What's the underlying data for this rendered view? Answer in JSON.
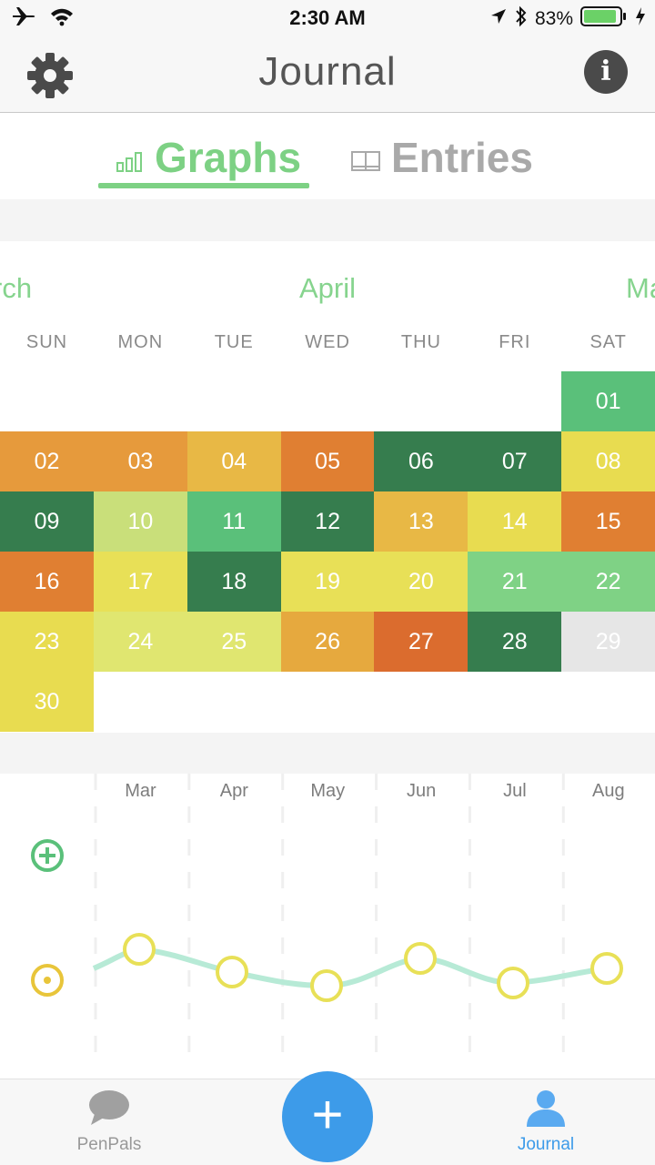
{
  "status_bar": {
    "time": "2:30 AM",
    "battery": "83%"
  },
  "nav": {
    "title": "Journal",
    "left_icon": "gear-icon",
    "right_icon": "info-icon",
    "info_glyph": "i"
  },
  "tabs": [
    {
      "label": "Graphs",
      "icon": "bar-chart-icon",
      "selected": true
    },
    {
      "label": "Entries",
      "icon": "book-icon",
      "selected": false
    }
  ],
  "calendar": {
    "prev_month": "rch",
    "month": "April",
    "next_month": "Ma",
    "weekdays": [
      "SUN",
      "MON",
      "TUE",
      "WED",
      "THU",
      "FRI",
      "SAT"
    ],
    "days": [
      {
        "label": "01",
        "color": "#5ac07a"
      },
      {
        "label": "02",
        "color": "#e69a3c"
      },
      {
        "label": "03",
        "color": "#e69a3c"
      },
      {
        "label": "04",
        "color": "#e8b845"
      },
      {
        "label": "05",
        "color": "#e07f32"
      },
      {
        "label": "06",
        "color": "#367d4e"
      },
      {
        "label": "07",
        "color": "#367d4e"
      },
      {
        "label": "08",
        "color": "#e8dc50"
      },
      {
        "label": "09",
        "color": "#367d4e"
      },
      {
        "label": "10",
        "color": "#c9df7a"
      },
      {
        "label": "11",
        "color": "#5ac07a"
      },
      {
        "label": "12",
        "color": "#367d4e"
      },
      {
        "label": "13",
        "color": "#e8b845"
      },
      {
        "label": "14",
        "color": "#e8dc50"
      },
      {
        "label": "15",
        "color": "#e07f32"
      },
      {
        "label": "16",
        "color": "#e07f32"
      },
      {
        "label": "17",
        "color": "#e8e057"
      },
      {
        "label": "18",
        "color": "#367d4e"
      },
      {
        "label": "19",
        "color": "#e8e057"
      },
      {
        "label": "20",
        "color": "#e8e057"
      },
      {
        "label": "21",
        "color": "#7fd285"
      },
      {
        "label": "22",
        "color": "#7fd285"
      },
      {
        "label": "23",
        "color": "#e8dc50"
      },
      {
        "label": "24",
        "color": "#e0e670"
      },
      {
        "label": "25",
        "color": "#e0e670"
      },
      {
        "label": "26",
        "color": "#e6a93e"
      },
      {
        "label": "27",
        "color": "#db6c2e"
      },
      {
        "label": "28",
        "color": "#367d4e"
      },
      {
        "label": "29",
        "color": "#e6e6e6"
      },
      {
        "label": "30",
        "color": "#e8dc50"
      }
    ]
  },
  "graph": {
    "months": [
      "Mar",
      "Apr",
      "May",
      "Jun",
      "Jul",
      "Aug"
    ],
    "markers": [
      {
        "icon": "plus-circle-icon",
        "color": "#5ac07a"
      },
      {
        "icon": "dot-circle-icon",
        "color": "#e8c53a"
      }
    ],
    "line_color": "#b7ead6",
    "point_color": "#e8e057"
  },
  "tab_bar": {
    "items": [
      {
        "label": "PenPals",
        "icon": "speech-bubble-icon",
        "selected": false
      },
      {
        "label": "Journal",
        "icon": "person-icon",
        "selected": true
      }
    ],
    "add_label": "+"
  }
}
